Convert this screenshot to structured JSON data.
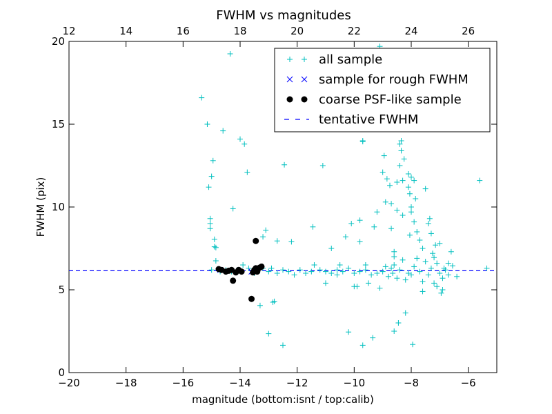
{
  "chart_data": {
    "type": "scatter",
    "title": "FWHM vs magnitudes",
    "xlabel": "magnitude (bottom:isnt / top:calib)",
    "ylabel": "FWHM (pix)",
    "xlim": [
      -20,
      -5
    ],
    "ylim": [
      0,
      20
    ],
    "x_ticks": [
      "−20",
      "−18",
      "−16",
      "−14",
      "−12",
      "−10",
      "−8",
      "−6"
    ],
    "y_ticks": [
      "0",
      "5",
      "10",
      "15",
      "20"
    ],
    "top_xlim": [
      12,
      27
    ],
    "top_ticks": [
      "12",
      "14",
      "16",
      "18",
      "20",
      "22",
      "24",
      "26"
    ],
    "grid": false,
    "legend_position": "top-right",
    "colors": {
      "all": "#00bfbf",
      "rough": "#0000ff",
      "coarse": "#000000",
      "tentative": "#0000ff"
    },
    "series": [
      {
        "name": "all sample",
        "marker": "plus",
        "points": [
          [
            -15.35,
            16.6
          ],
          [
            -15.15,
            15.0
          ],
          [
            -15.1,
            11.2
          ],
          [
            -15.05,
            9.3
          ],
          [
            -15.05,
            9.0
          ],
          [
            -15.05,
            8.7
          ],
          [
            -15.0,
            11.85
          ],
          [
            -14.95,
            12.8
          ],
          [
            -14.9,
            8.05
          ],
          [
            -14.9,
            7.6
          ],
          [
            -14.85,
            7.55
          ],
          [
            -14.85,
            6.75
          ],
          [
            -14.6,
            14.6
          ],
          [
            -14.35,
            19.25
          ],
          [
            -14.25,
            9.9
          ],
          [
            -14.0,
            14.1
          ],
          [
            -13.85,
            13.8
          ],
          [
            -13.75,
            12.1
          ],
          [
            -13.3,
            4.05
          ],
          [
            -13.2,
            8.2
          ],
          [
            -13.1,
            8.6
          ],
          [
            -13.0,
            2.35
          ],
          [
            -12.8,
            4.3
          ],
          [
            -12.85,
            4.25
          ],
          [
            -12.7,
            7.95
          ],
          [
            -12.5,
            1.65
          ],
          [
            -12.45,
            12.55
          ],
          [
            -12.2,
            7.9
          ],
          [
            -11.45,
            8.8
          ],
          [
            -11.4,
            6.5
          ],
          [
            -11.1,
            12.5
          ],
          [
            -11.0,
            5.4
          ],
          [
            -10.8,
            7.5
          ],
          [
            -10.6,
            5.9
          ],
          [
            -10.5,
            6.5
          ],
          [
            -10.3,
            8.2
          ],
          [
            -10.2,
            2.45
          ],
          [
            -10.1,
            9.0
          ],
          [
            -10.0,
            5.2
          ],
          [
            -9.9,
            5.2
          ],
          [
            -9.8,
            9.2
          ],
          [
            -9.8,
            7.9
          ],
          [
            -9.7,
            1.65
          ],
          [
            -9.7,
            13.95
          ],
          [
            -9.7,
            14.0
          ],
          [
            -9.6,
            6.5
          ],
          [
            -9.5,
            5.4
          ],
          [
            -9.35,
            2.1
          ],
          [
            -9.3,
            8.8
          ],
          [
            -9.2,
            9.7
          ],
          [
            -9.1,
            19.7
          ],
          [
            -9.1,
            5.1
          ],
          [
            -9.0,
            12.1
          ],
          [
            -8.95,
            13.1
          ],
          [
            -8.9,
            10.3
          ],
          [
            -8.85,
            11.7
          ],
          [
            -8.75,
            11.3
          ],
          [
            -8.7,
            10.2
          ],
          [
            -8.7,
            8.7
          ],
          [
            -8.65,
            6.0
          ],
          [
            -8.6,
            7.3
          ],
          [
            -8.6,
            7.0
          ],
          [
            -8.6,
            2.5
          ],
          [
            -8.5,
            11.5
          ],
          [
            -8.5,
            9.8
          ],
          [
            -8.45,
            3.0
          ],
          [
            -8.4,
            13.8
          ],
          [
            -8.4,
            12.5
          ],
          [
            -8.35,
            14.0
          ],
          [
            -8.35,
            13.4
          ],
          [
            -8.3,
            11.6
          ],
          [
            -8.3,
            9.5
          ],
          [
            -8.25,
            12.9
          ],
          [
            -8.2,
            3.6
          ],
          [
            -8.1,
            12.0
          ],
          [
            -8.1,
            11.2
          ],
          [
            -8.05,
            10.8
          ],
          [
            -8.05,
            8.3
          ],
          [
            -8.0,
            11.8
          ],
          [
            -8.0,
            10.0
          ],
          [
            -8.0,
            9.7
          ],
          [
            -7.95,
            1.7
          ],
          [
            -7.9,
            11.6
          ],
          [
            -7.9,
            9.1
          ],
          [
            -7.85,
            10.5
          ],
          [
            -7.8,
            8.5
          ],
          [
            -7.7,
            8.0
          ],
          [
            -7.6,
            7.5
          ],
          [
            -7.6,
            4.9
          ],
          [
            -7.5,
            11.1
          ],
          [
            -7.4,
            9.0
          ],
          [
            -7.35,
            9.3
          ],
          [
            -7.3,
            8.4
          ],
          [
            -7.25,
            7.2
          ],
          [
            -7.2,
            6.95
          ],
          [
            -7.15,
            7.7
          ],
          [
            -7.1,
            5.2
          ],
          [
            -7.0,
            7.8
          ],
          [
            -6.95,
            4.8
          ],
          [
            -6.9,
            5.0
          ],
          [
            -6.85,
            6.3
          ],
          [
            -6.7,
            6.6
          ],
          [
            -6.6,
            7.3
          ],
          [
            -6.55,
            6.45
          ],
          [
            -6.4,
            5.8
          ],
          [
            -5.6,
            11.6
          ],
          [
            -5.35,
            6.3
          ],
          [
            -15.0,
            6.2
          ],
          [
            -14.7,
            6.1
          ],
          [
            -14.5,
            6.2
          ],
          [
            -14.3,
            6.1
          ],
          [
            -14.1,
            6.2
          ],
          [
            -13.9,
            6.5
          ],
          [
            -13.7,
            6.3
          ],
          [
            -13.5,
            6.0
          ],
          [
            -13.2,
            6.3
          ],
          [
            -13.0,
            6.1
          ],
          [
            -12.9,
            6.3
          ],
          [
            -12.7,
            6.0
          ],
          [
            -12.5,
            6.2
          ],
          [
            -12.3,
            6.1
          ],
          [
            -12.1,
            5.9
          ],
          [
            -11.9,
            6.2
          ],
          [
            -11.7,
            6.0
          ],
          [
            -11.5,
            6.1
          ],
          [
            -11.2,
            6.2
          ],
          [
            -11.0,
            6.1
          ],
          [
            -10.8,
            6.0
          ],
          [
            -10.6,
            6.2
          ],
          [
            -10.4,
            6.1
          ],
          [
            -10.2,
            6.3
          ],
          [
            -10.0,
            6.0
          ],
          [
            -9.8,
            6.1
          ],
          [
            -9.6,
            6.2
          ],
          [
            -9.4,
            5.9
          ],
          [
            -9.2,
            6.0
          ],
          [
            -9.0,
            6.1
          ],
          [
            -8.9,
            6.4
          ],
          [
            -8.8,
            5.8
          ],
          [
            -8.7,
            6.3
          ],
          [
            -8.6,
            6.5
          ],
          [
            -8.5,
            5.7
          ],
          [
            -8.4,
            6.2
          ],
          [
            -8.3,
            6.8
          ],
          [
            -8.2,
            5.6
          ],
          [
            -8.1,
            6.0
          ],
          [
            -8.0,
            5.9
          ],
          [
            -7.9,
            6.4
          ],
          [
            -7.8,
            6.9
          ],
          [
            -7.7,
            6.1
          ],
          [
            -7.6,
            5.5
          ],
          [
            -7.5,
            6.7
          ],
          [
            -7.4,
            5.9
          ],
          [
            -7.3,
            6.3
          ],
          [
            -7.2,
            5.4
          ],
          [
            -7.1,
            6.6
          ],
          [
            -7.0,
            6.0
          ],
          [
            -6.9,
            5.7
          ],
          [
            -6.8,
            6.2
          ],
          [
            -6.7,
            5.9
          ]
        ]
      },
      {
        "name": "sample for rough FWHM",
        "marker": "x",
        "points": [
          [
            -14.7,
            6.2
          ],
          [
            -13.6,
            6.1
          ],
          [
            -13.4,
            6.3
          ]
        ]
      },
      {
        "name": "coarse PSF-like sample",
        "marker": "circle",
        "points": [
          [
            -14.75,
            6.25
          ],
          [
            -14.65,
            6.2
          ],
          [
            -14.5,
            6.1
          ],
          [
            -14.4,
            6.15
          ],
          [
            -14.3,
            6.2
          ],
          [
            -14.25,
            5.55
          ],
          [
            -14.15,
            6.05
          ],
          [
            -14.05,
            6.2
          ],
          [
            -13.95,
            6.1
          ],
          [
            -13.6,
            4.45
          ],
          [
            -13.55,
            6.05
          ],
          [
            -13.5,
            6.2
          ],
          [
            -13.45,
            6.3
          ],
          [
            -13.45,
            7.95
          ],
          [
            -13.4,
            6.1
          ],
          [
            -13.35,
            6.3
          ],
          [
            -13.3,
            6.35
          ],
          [
            -13.25,
            6.4
          ]
        ]
      },
      {
        "name": "tentative FWHM",
        "marker": "dashed-line",
        "y": 6.15
      }
    ]
  }
}
